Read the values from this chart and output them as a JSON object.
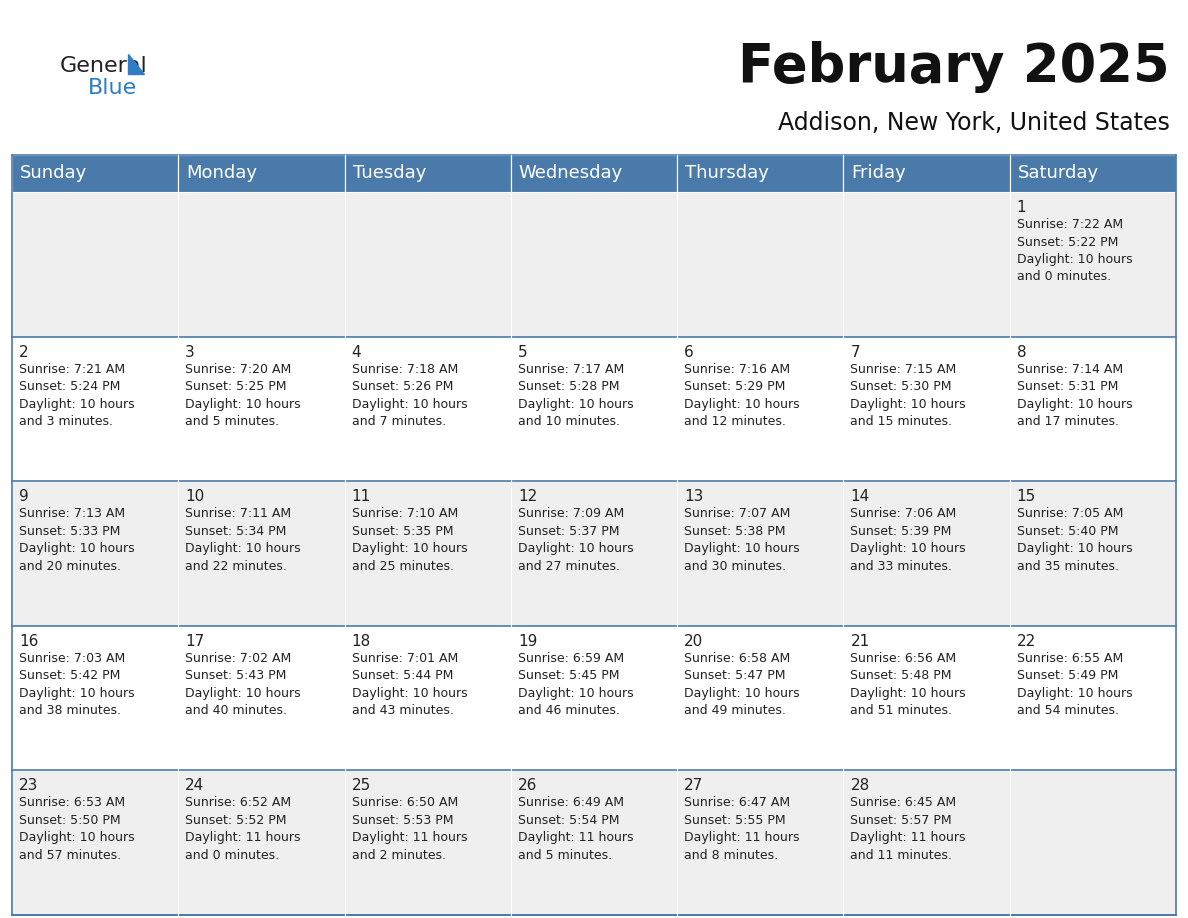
{
  "title": "February 2025",
  "subtitle": "Addison, New York, United States",
  "header_bg_color": "#4a7aaa",
  "header_text_color": "#ffffff",
  "row0_bg": "#efefef",
  "row1_bg": "#ffffff",
  "row2_bg": "#efefef",
  "row3_bg": "#ffffff",
  "row4_bg": "#efefef",
  "day_headers": [
    "Sunday",
    "Monday",
    "Tuesday",
    "Wednesday",
    "Thursday",
    "Friday",
    "Saturday"
  ],
  "title_fontsize": 38,
  "subtitle_fontsize": 17,
  "header_fontsize": 13,
  "day_num_fontsize": 11,
  "cell_fontsize": 9,
  "logo_general_color": "#222222",
  "logo_blue_color": "#2e7dc5",
  "weeks": [
    [
      {
        "day": null,
        "info": ""
      },
      {
        "day": null,
        "info": ""
      },
      {
        "day": null,
        "info": ""
      },
      {
        "day": null,
        "info": ""
      },
      {
        "day": null,
        "info": ""
      },
      {
        "day": null,
        "info": ""
      },
      {
        "day": 1,
        "info": "Sunrise: 7:22 AM\nSunset: 5:22 PM\nDaylight: 10 hours\nand 0 minutes."
      }
    ],
    [
      {
        "day": 2,
        "info": "Sunrise: 7:21 AM\nSunset: 5:24 PM\nDaylight: 10 hours\nand 3 minutes."
      },
      {
        "day": 3,
        "info": "Sunrise: 7:20 AM\nSunset: 5:25 PM\nDaylight: 10 hours\nand 5 minutes."
      },
      {
        "day": 4,
        "info": "Sunrise: 7:18 AM\nSunset: 5:26 PM\nDaylight: 10 hours\nand 7 minutes."
      },
      {
        "day": 5,
        "info": "Sunrise: 7:17 AM\nSunset: 5:28 PM\nDaylight: 10 hours\nand 10 minutes."
      },
      {
        "day": 6,
        "info": "Sunrise: 7:16 AM\nSunset: 5:29 PM\nDaylight: 10 hours\nand 12 minutes."
      },
      {
        "day": 7,
        "info": "Sunrise: 7:15 AM\nSunset: 5:30 PM\nDaylight: 10 hours\nand 15 minutes."
      },
      {
        "day": 8,
        "info": "Sunrise: 7:14 AM\nSunset: 5:31 PM\nDaylight: 10 hours\nand 17 minutes."
      }
    ],
    [
      {
        "day": 9,
        "info": "Sunrise: 7:13 AM\nSunset: 5:33 PM\nDaylight: 10 hours\nand 20 minutes."
      },
      {
        "day": 10,
        "info": "Sunrise: 7:11 AM\nSunset: 5:34 PM\nDaylight: 10 hours\nand 22 minutes."
      },
      {
        "day": 11,
        "info": "Sunrise: 7:10 AM\nSunset: 5:35 PM\nDaylight: 10 hours\nand 25 minutes."
      },
      {
        "day": 12,
        "info": "Sunrise: 7:09 AM\nSunset: 5:37 PM\nDaylight: 10 hours\nand 27 minutes."
      },
      {
        "day": 13,
        "info": "Sunrise: 7:07 AM\nSunset: 5:38 PM\nDaylight: 10 hours\nand 30 minutes."
      },
      {
        "day": 14,
        "info": "Sunrise: 7:06 AM\nSunset: 5:39 PM\nDaylight: 10 hours\nand 33 minutes."
      },
      {
        "day": 15,
        "info": "Sunrise: 7:05 AM\nSunset: 5:40 PM\nDaylight: 10 hours\nand 35 minutes."
      }
    ],
    [
      {
        "day": 16,
        "info": "Sunrise: 7:03 AM\nSunset: 5:42 PM\nDaylight: 10 hours\nand 38 minutes."
      },
      {
        "day": 17,
        "info": "Sunrise: 7:02 AM\nSunset: 5:43 PM\nDaylight: 10 hours\nand 40 minutes."
      },
      {
        "day": 18,
        "info": "Sunrise: 7:01 AM\nSunset: 5:44 PM\nDaylight: 10 hours\nand 43 minutes."
      },
      {
        "day": 19,
        "info": "Sunrise: 6:59 AM\nSunset: 5:45 PM\nDaylight: 10 hours\nand 46 minutes."
      },
      {
        "day": 20,
        "info": "Sunrise: 6:58 AM\nSunset: 5:47 PM\nDaylight: 10 hours\nand 49 minutes."
      },
      {
        "day": 21,
        "info": "Sunrise: 6:56 AM\nSunset: 5:48 PM\nDaylight: 10 hours\nand 51 minutes."
      },
      {
        "day": 22,
        "info": "Sunrise: 6:55 AM\nSunset: 5:49 PM\nDaylight: 10 hours\nand 54 minutes."
      }
    ],
    [
      {
        "day": 23,
        "info": "Sunrise: 6:53 AM\nSunset: 5:50 PM\nDaylight: 10 hours\nand 57 minutes."
      },
      {
        "day": 24,
        "info": "Sunrise: 6:52 AM\nSunset: 5:52 PM\nDaylight: 11 hours\nand 0 minutes."
      },
      {
        "day": 25,
        "info": "Sunrise: 6:50 AM\nSunset: 5:53 PM\nDaylight: 11 hours\nand 2 minutes."
      },
      {
        "day": 26,
        "info": "Sunrise: 6:49 AM\nSunset: 5:54 PM\nDaylight: 11 hours\nand 5 minutes."
      },
      {
        "day": 27,
        "info": "Sunrise: 6:47 AM\nSunset: 5:55 PM\nDaylight: 11 hours\nand 8 minutes."
      },
      {
        "day": 28,
        "info": "Sunrise: 6:45 AM\nSunset: 5:57 PM\nDaylight: 11 hours\nand 11 minutes."
      },
      {
        "day": null,
        "info": ""
      }
    ]
  ]
}
